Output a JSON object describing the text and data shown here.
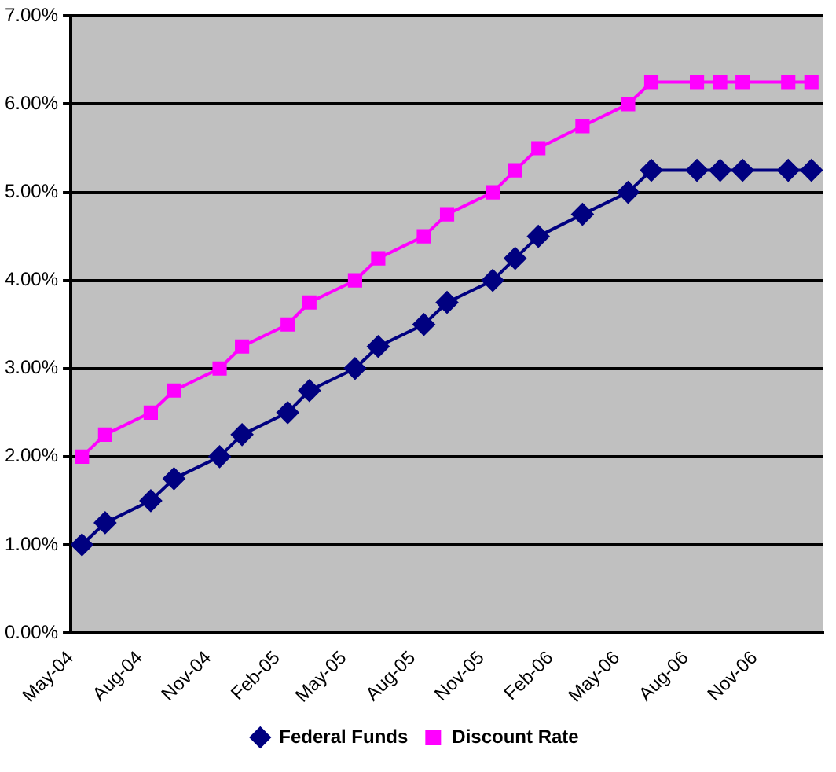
{
  "chart_data": {
    "type": "line",
    "x": [
      "2004-05-16",
      "2004-06-16",
      "2004-08-16",
      "2004-09-16",
      "2004-11-16",
      "2004-12-16",
      "2005-02-15",
      "2005-03-16",
      "2005-05-16",
      "2005-06-16",
      "2005-08-16",
      "2005-09-16",
      "2005-11-16",
      "2005-12-16",
      "2006-01-16",
      "2006-03-16",
      "2006-05-16",
      "2006-06-16",
      "2006-08-16",
      "2006-09-16",
      "2006-10-16",
      "2006-12-16",
      "2007-01-16"
    ],
    "series": [
      {
        "name": "Federal Funds",
        "color": "#000080",
        "marker": "diamond",
        "values": [
          1.0,
          1.25,
          1.5,
          1.75,
          2.0,
          2.25,
          2.5,
          2.75,
          3.0,
          3.25,
          3.5,
          3.75,
          4.0,
          4.25,
          4.5,
          4.75,
          5.0,
          5.25,
          5.25,
          5.25,
          5.25,
          5.25,
          5.25
        ]
      },
      {
        "name": "Discount Rate",
        "color": "#ff00ff",
        "marker": "square",
        "values": [
          2.0,
          2.25,
          2.5,
          2.75,
          3.0,
          3.25,
          3.5,
          3.75,
          4.0,
          4.25,
          4.5,
          4.75,
          5.0,
          5.25,
          5.5,
          5.75,
          6.0,
          6.25,
          6.25,
          6.25,
          6.25,
          6.25,
          6.25
        ]
      }
    ],
    "xlim": [
      "2004-05-01",
      "2007-02-01"
    ],
    "xticks": [
      {
        "value": "2004-05-01",
        "label": "May-04"
      },
      {
        "value": "2004-08-01",
        "label": "Aug-04"
      },
      {
        "value": "2004-11-01",
        "label": "Nov-04"
      },
      {
        "value": "2005-02-01",
        "label": "Feb-05"
      },
      {
        "value": "2005-05-01",
        "label": "May-05"
      },
      {
        "value": "2005-08-01",
        "label": "Aug-05"
      },
      {
        "value": "2005-11-01",
        "label": "Nov-05"
      },
      {
        "value": "2006-02-01",
        "label": "Feb-06"
      },
      {
        "value": "2006-05-01",
        "label": "May-06"
      },
      {
        "value": "2006-08-01",
        "label": "Aug-06"
      },
      {
        "value": "2006-11-01",
        "label": "Nov-06"
      }
    ],
    "ylim": [
      0,
      7
    ],
    "yticks": [
      {
        "value": 0,
        "label": "0.00%"
      },
      {
        "value": 1,
        "label": "1.00%"
      },
      {
        "value": 2,
        "label": "2.00%"
      },
      {
        "value": 3,
        "label": "3.00%"
      },
      {
        "value": 4,
        "label": "4.00%"
      },
      {
        "value": 5,
        "label": "5.00%"
      },
      {
        "value": 6,
        "label": "6.00%"
      },
      {
        "value": 7,
        "label": "7.00%"
      }
    ],
    "grid": "y",
    "legend": "bottom",
    "line_style": "solid"
  }
}
